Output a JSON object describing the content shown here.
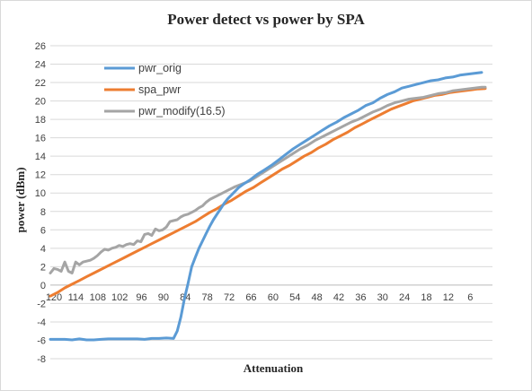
{
  "chart_data": {
    "type": "line",
    "title": "Power detect vs power by SPA",
    "xlabel": "Attenuation",
    "ylabel": "power (dBm)",
    "ylim": [
      -8,
      26
    ],
    "ytick_step": 2,
    "x_reversed": true,
    "xlim": [
      1,
      121
    ],
    "x_tick_labels": [
      "120",
      "114",
      "108",
      "102",
      "96",
      "90",
      "84",
      "78",
      "72",
      "66",
      "60",
      "54",
      "48",
      "42",
      "36",
      "30",
      "24",
      "18",
      "12",
      "6"
    ],
    "grid": true,
    "legend": "upper-left",
    "series": [
      {
        "name": "pwr_orig",
        "color": "#5b9bd5",
        "points": [
          [
            121,
            -5.9
          ],
          [
            119,
            -5.9
          ],
          [
            117,
            -5.9
          ],
          [
            115,
            -5.95
          ],
          [
            113,
            -5.85
          ],
          [
            111,
            -5.95
          ],
          [
            109,
            -5.95
          ],
          [
            107,
            -5.9
          ],
          [
            105,
            -5.85
          ],
          [
            103,
            -5.85
          ],
          [
            101,
            -5.85
          ],
          [
            99,
            -5.85
          ],
          [
            97,
            -5.85
          ],
          [
            95,
            -5.9
          ],
          [
            93,
            -5.8
          ],
          [
            91,
            -5.8
          ],
          [
            89,
            -5.75
          ],
          [
            87,
            -5.8
          ],
          [
            86,
            -5.0
          ],
          [
            85,
            -3.5
          ],
          [
            84,
            -1.5
          ],
          [
            83,
            0.2
          ],
          [
            82,
            2.0
          ],
          [
            81,
            3.0
          ],
          [
            80,
            4.0
          ],
          [
            79,
            4.8
          ],
          [
            78,
            5.6
          ],
          [
            77,
            6.4
          ],
          [
            76,
            7.1
          ],
          [
            75,
            7.7
          ],
          [
            74,
            8.3
          ],
          [
            73,
            8.9
          ],
          [
            72,
            9.4
          ],
          [
            71,
            9.8
          ],
          [
            70,
            10.2
          ],
          [
            69,
            10.6
          ],
          [
            68,
            10.9
          ],
          [
            66,
            11.4
          ],
          [
            64,
            12.0
          ],
          [
            62,
            12.5
          ],
          [
            60,
            13.0
          ],
          [
            58,
            13.6
          ],
          [
            56,
            14.2
          ],
          [
            54,
            14.8
          ],
          [
            52,
            15.3
          ],
          [
            50,
            15.8
          ],
          [
            48,
            16.3
          ],
          [
            46,
            16.8
          ],
          [
            44,
            17.3
          ],
          [
            42,
            17.7
          ],
          [
            40,
            18.2
          ],
          [
            38,
            18.6
          ],
          [
            36,
            19.0
          ],
          [
            34,
            19.5
          ],
          [
            32,
            19.8
          ],
          [
            30,
            20.3
          ],
          [
            28,
            20.7
          ],
          [
            26,
            21.0
          ],
          [
            24,
            21.4
          ],
          [
            22,
            21.6
          ],
          [
            20,
            21.8
          ],
          [
            18,
            22.0
          ],
          [
            16,
            22.2
          ],
          [
            14,
            22.3
          ],
          [
            12,
            22.5
          ],
          [
            10,
            22.6
          ],
          [
            8,
            22.8
          ],
          [
            6,
            22.9
          ],
          [
            4,
            23.0
          ],
          [
            2,
            23.1
          ]
        ]
      },
      {
        "name": "spa_pwr",
        "color": "#ed7d31",
        "points": [
          [
            121,
            -1.2
          ],
          [
            119,
            -0.8
          ],
          [
            117,
            -0.3
          ],
          [
            115,
            0.1
          ],
          [
            113,
            0.5
          ],
          [
            111,
            0.9
          ],
          [
            109,
            1.3
          ],
          [
            107,
            1.7
          ],
          [
            105,
            2.1
          ],
          [
            103,
            2.5
          ],
          [
            101,
            2.9
          ],
          [
            99,
            3.3
          ],
          [
            97,
            3.7
          ],
          [
            95,
            4.1
          ],
          [
            93,
            4.5
          ],
          [
            91,
            4.9
          ],
          [
            89,
            5.3
          ],
          [
            87,
            5.7
          ],
          [
            85,
            6.1
          ],
          [
            83,
            6.5
          ],
          [
            81,
            6.9
          ],
          [
            79,
            7.4
          ],
          [
            77,
            7.9
          ],
          [
            75,
            8.3
          ],
          [
            73,
            8.8
          ],
          [
            71,
            9.2
          ],
          [
            69,
            9.7
          ],
          [
            67,
            10.2
          ],
          [
            65,
            10.6
          ],
          [
            63,
            11.1
          ],
          [
            61,
            11.6
          ],
          [
            59,
            12.1
          ],
          [
            57,
            12.6
          ],
          [
            55,
            13.0
          ],
          [
            53,
            13.5
          ],
          [
            51,
            14.0
          ],
          [
            49,
            14.4
          ],
          [
            47,
            14.9
          ],
          [
            45,
            15.3
          ],
          [
            43,
            15.8
          ],
          [
            41,
            16.2
          ],
          [
            39,
            16.6
          ],
          [
            37,
            17.1
          ],
          [
            35,
            17.5
          ],
          [
            33,
            17.9
          ],
          [
            31,
            18.3
          ],
          [
            29,
            18.7
          ],
          [
            27,
            19.1
          ],
          [
            25,
            19.4
          ],
          [
            23,
            19.7
          ],
          [
            21,
            20.0
          ],
          [
            19,
            20.2
          ],
          [
            17,
            20.4
          ],
          [
            15,
            20.6
          ],
          [
            13,
            20.7
          ],
          [
            11,
            20.9
          ],
          [
            9,
            21.0
          ],
          [
            7,
            21.1
          ],
          [
            5,
            21.2
          ],
          [
            3,
            21.3
          ],
          [
            1,
            21.35
          ]
        ]
      },
      {
        "name": "pwr_modify(16.5)",
        "color": "#a5a5a5",
        "points": [
          [
            121,
            1.3
          ],
          [
            120,
            1.8
          ],
          [
            119,
            1.7
          ],
          [
            118,
            1.5
          ],
          [
            117,
            2.5
          ],
          [
            116,
            1.5
          ],
          [
            115,
            1.3
          ],
          [
            114,
            2.5
          ],
          [
            113,
            2.2
          ],
          [
            112,
            2.5
          ],
          [
            111,
            2.6
          ],
          [
            110,
            2.7
          ],
          [
            109,
            2.9
          ],
          [
            108,
            3.2
          ],
          [
            107,
            3.6
          ],
          [
            106,
            3.9
          ],
          [
            105,
            3.8
          ],
          [
            104,
            4.0
          ],
          [
            103,
            4.1
          ],
          [
            102,
            4.3
          ],
          [
            101,
            4.2
          ],
          [
            100,
            4.4
          ],
          [
            99,
            4.5
          ],
          [
            98,
            4.4
          ],
          [
            97,
            4.8
          ],
          [
            96,
            4.7
          ],
          [
            95,
            5.5
          ],
          [
            94,
            5.6
          ],
          [
            93,
            5.4
          ],
          [
            92,
            6.1
          ],
          [
            91,
            5.9
          ],
          [
            90,
            6.0
          ],
          [
            89,
            6.3
          ],
          [
            88,
            6.9
          ],
          [
            87,
            7.0
          ],
          [
            86,
            7.1
          ],
          [
            85,
            7.4
          ],
          [
            84,
            7.6
          ],
          [
            83,
            7.7
          ],
          [
            82,
            7.9
          ],
          [
            81,
            8.1
          ],
          [
            80,
            8.4
          ],
          [
            79,
            8.6
          ],
          [
            78,
            9.0
          ],
          [
            77,
            9.3
          ],
          [
            76,
            9.5
          ],
          [
            74,
            9.9
          ],
          [
            72,
            10.3
          ],
          [
            70,
            10.7
          ],
          [
            68,
            11.0
          ],
          [
            66,
            11.3
          ],
          [
            64,
            11.8
          ],
          [
            62,
            12.3
          ],
          [
            60,
            12.8
          ],
          [
            58,
            13.3
          ],
          [
            56,
            13.8
          ],
          [
            54,
            14.3
          ],
          [
            52,
            14.8
          ],
          [
            50,
            15.2
          ],
          [
            48,
            15.7
          ],
          [
            46,
            16.1
          ],
          [
            44,
            16.5
          ],
          [
            42,
            16.9
          ],
          [
            40,
            17.3
          ],
          [
            38,
            17.7
          ],
          [
            36,
            18.0
          ],
          [
            34,
            18.4
          ],
          [
            32,
            18.8
          ],
          [
            30,
            19.1
          ],
          [
            28,
            19.5
          ],
          [
            26,
            19.8
          ],
          [
            24,
            20.0
          ],
          [
            22,
            20.2
          ],
          [
            20,
            20.3
          ],
          [
            18,
            20.4
          ],
          [
            16,
            20.6
          ],
          [
            14,
            20.8
          ],
          [
            12,
            20.9
          ],
          [
            10,
            21.1
          ],
          [
            8,
            21.2
          ],
          [
            6,
            21.3
          ],
          [
            4,
            21.4
          ],
          [
            2,
            21.5
          ],
          [
            1,
            21.5
          ]
        ]
      }
    ]
  }
}
